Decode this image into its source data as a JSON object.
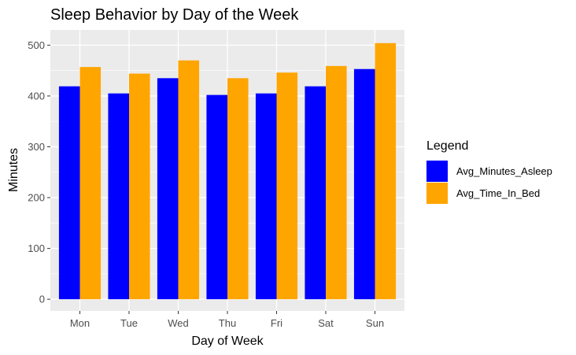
{
  "chart_data": {
    "type": "bar",
    "title": "Sleep Behavior by Day of the Week",
    "xlabel": "Day of Week",
    "ylabel": "Minutes",
    "categories": [
      "Mon",
      "Tue",
      "Wed",
      "Thu",
      "Fri",
      "Sat",
      "Sun"
    ],
    "series": [
      {
        "name": "Avg_Minutes_Asleep",
        "color": "#0000ff",
        "values": [
          419,
          405,
          435,
          402,
          405,
          419,
          453
        ]
      },
      {
        "name": "Avg_Time_In_Bed",
        "color": "#ffa500",
        "values": [
          457,
          444,
          470,
          435,
          446,
          459,
          504
        ]
      }
    ],
    "ylim": [
      -23,
      530
    ],
    "yticks": [
      "0",
      "100",
      "200",
      "300",
      "400",
      "500"
    ],
    "grid": true,
    "legend": {
      "title": "Legend",
      "position": "right"
    },
    "panel_background": "#ebebeb"
  }
}
